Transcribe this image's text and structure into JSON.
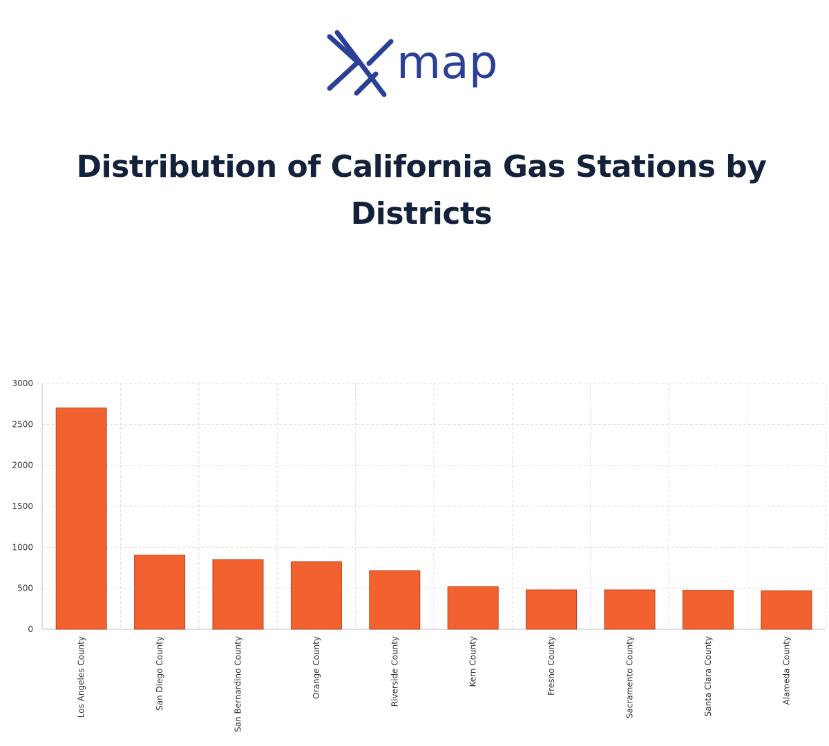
{
  "brand": {
    "logo_text": "map",
    "logo_color": "#2b3f97"
  },
  "page": {
    "title": "Distribution of California Gas Stations by Districts"
  },
  "chart_data": {
    "type": "bar",
    "title": "Distribution of California Gas Stations by Districts",
    "xlabel": "",
    "ylabel": "",
    "categories": [
      "Los Angeles County",
      "San Diego County",
      "San Bernardino County",
      "Orange County",
      "Riverside County",
      "Kern County",
      "Fresno County",
      "Sacramento County",
      "Santa Clara County",
      "Alameda County"
    ],
    "values": [
      2700,
      905,
      850,
      825,
      715,
      520,
      480,
      480,
      475,
      470
    ],
    "ylim": [
      0,
      3000
    ],
    "yticks": [
      0,
      500,
      1000,
      1500,
      2000,
      2500,
      3000
    ],
    "grid": true,
    "legend": "none",
    "bar_color": "#f2622e",
    "bar_edge_color": "#b8401a"
  }
}
